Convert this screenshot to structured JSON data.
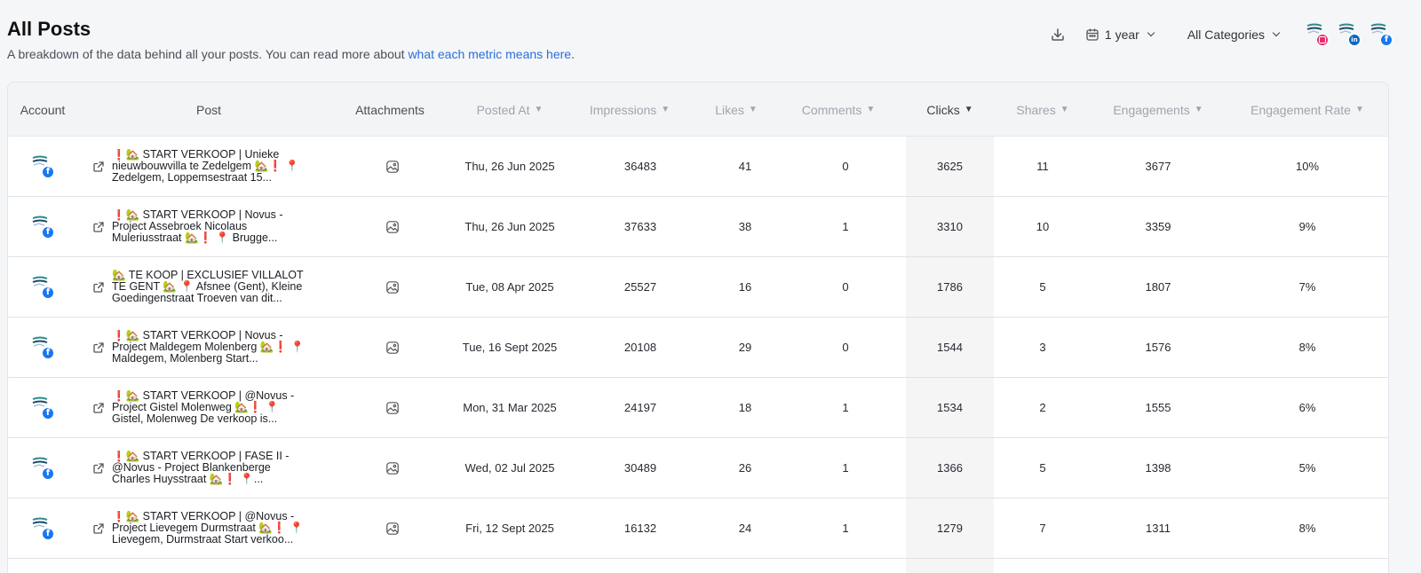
{
  "header": {
    "title": "All Posts",
    "subtitle_prefix": "A breakdown of the data behind all your posts. You can read more about ",
    "subtitle_link": "what each metric means here",
    "subtitle_suffix": "."
  },
  "toolbar": {
    "download_icon": "download-icon",
    "date_range": "1 year",
    "category": "All Categories",
    "accounts": [
      {
        "network": "instagram",
        "icon": "instagram-icon"
      },
      {
        "network": "linkedin",
        "icon": "linkedin-icon"
      },
      {
        "network": "facebook",
        "icon": "facebook-icon"
      }
    ]
  },
  "table": {
    "columns": [
      "Account",
      "Post",
      "Attachments",
      "Posted At",
      "Impressions",
      "Likes",
      "Comments",
      "Clicks",
      "Shares",
      "Engagements",
      "Engagement Rate"
    ],
    "sort_arrow": "▼",
    "sorted_column": "Clicks",
    "rows": [
      {
        "post": "❗🏡 START VERKOOP | Unieke nieuwbouwvilla te Zedelgem 🏡❗ 📍 Zedelgem, Loppemsestraat 15...",
        "posted_at": "Thu, 26 Jun 2025",
        "impressions": "36483",
        "likes": "41",
        "comments": "0",
        "clicks": "3625",
        "shares": "11",
        "engagements": "3677",
        "engagement_rate": "10%"
      },
      {
        "post": "❗🏡 START VERKOOP | Novus - Project Assebroek Nicolaus Muleriusstraat 🏡❗ 📍 Brugge...",
        "posted_at": "Thu, 26 Jun 2025",
        "impressions": "37633",
        "likes": "38",
        "comments": "1",
        "clicks": "3310",
        "shares": "10",
        "engagements": "3359",
        "engagement_rate": "9%"
      },
      {
        "post": "🏡 TE KOOP | EXCLUSIEF VILLALOT TE GENT 🏡 📍 Afsnee (Gent), Kleine Goedingenstraat Troeven van dit...",
        "posted_at": "Tue, 08 Apr 2025",
        "impressions": "25527",
        "likes": "16",
        "comments": "0",
        "clicks": "1786",
        "shares": "5",
        "engagements": "1807",
        "engagement_rate": "7%"
      },
      {
        "post": "❗🏡 START VERKOOP | Novus - Project Maldegem Molenberg 🏡❗ 📍 Maldegem, Molenberg Start...",
        "posted_at": "Tue, 16 Sept 2025",
        "impressions": "20108",
        "likes": "29",
        "comments": "0",
        "clicks": "1544",
        "shares": "3",
        "engagements": "1576",
        "engagement_rate": "8%"
      },
      {
        "post": "❗🏡 START VERKOOP | @Novus - Project Gistel Molenweg 🏡❗ 📍 Gistel, Molenweg De verkoop is...",
        "posted_at": "Mon, 31 Mar 2025",
        "impressions": "24197",
        "likes": "18",
        "comments": "1",
        "clicks": "1534",
        "shares": "2",
        "engagements": "1555",
        "engagement_rate": "6%"
      },
      {
        "post": "❗🏡 START VERKOOP | FASE II - @Novus - Project Blankenberge Charles Huysstraat 🏡❗ 📍...",
        "posted_at": "Wed, 02 Jul 2025",
        "impressions": "30489",
        "likes": "26",
        "comments": "1",
        "clicks": "1366",
        "shares": "5",
        "engagements": "1398",
        "engagement_rate": "5%"
      },
      {
        "post": "❗🏡 START VERKOOP | @Novus - Project Lievegem Durmstraat 🏡❗ 📍 Lievegem, Durmstraat Start verkoo...",
        "posted_at": "Fri, 12 Sept 2025",
        "impressions": "16132",
        "likes": "24",
        "comments": "1",
        "clicks": "1279",
        "shares": "7",
        "engagements": "1311",
        "engagement_rate": "8%"
      }
    ]
  }
}
